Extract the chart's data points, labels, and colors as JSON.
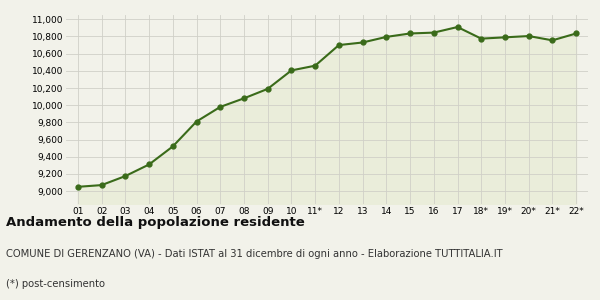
{
  "x_labels": [
    "01",
    "02",
    "03",
    "04",
    "05",
    "06",
    "07",
    "08",
    "09",
    "10",
    "11*",
    "12",
    "13",
    "14",
    "15",
    "16",
    "17",
    "18*",
    "19*",
    "20*",
    "21*",
    "22*"
  ],
  "y_values": [
    9050,
    9070,
    9175,
    9310,
    9520,
    9810,
    9980,
    10080,
    10190,
    10405,
    10460,
    10700,
    10730,
    10795,
    10835,
    10845,
    10910,
    10775,
    10790,
    10805,
    10755,
    10835
  ],
  "ylim": [
    8850,
    11050
  ],
  "yticks": [
    9000,
    9200,
    9400,
    9600,
    9800,
    10000,
    10200,
    10400,
    10600,
    10800,
    11000
  ],
  "line_color": "#3a6b1a",
  "fill_color": "#eaedda",
  "marker_size": 3.5,
  "line_width": 1.5,
  "grid_color": "#d0d0c8",
  "bg_color": "#f2f2ea",
  "plot_bg_color": "#f2f2ea",
  "title": "Andamento della popolazione residente",
  "subtitle": "COMUNE DI GERENZANO (VA) - Dati ISTAT al 31 dicembre di ogni anno - Elaborazione TUTTITALIA.IT",
  "footnote": "(*) post-censimento",
  "title_fontsize": 9.5,
  "subtitle_fontsize": 7.2,
  "footnote_fontsize": 7.2,
  "tick_fontsize": 6.5,
  "ytick_fontsize": 6.5
}
